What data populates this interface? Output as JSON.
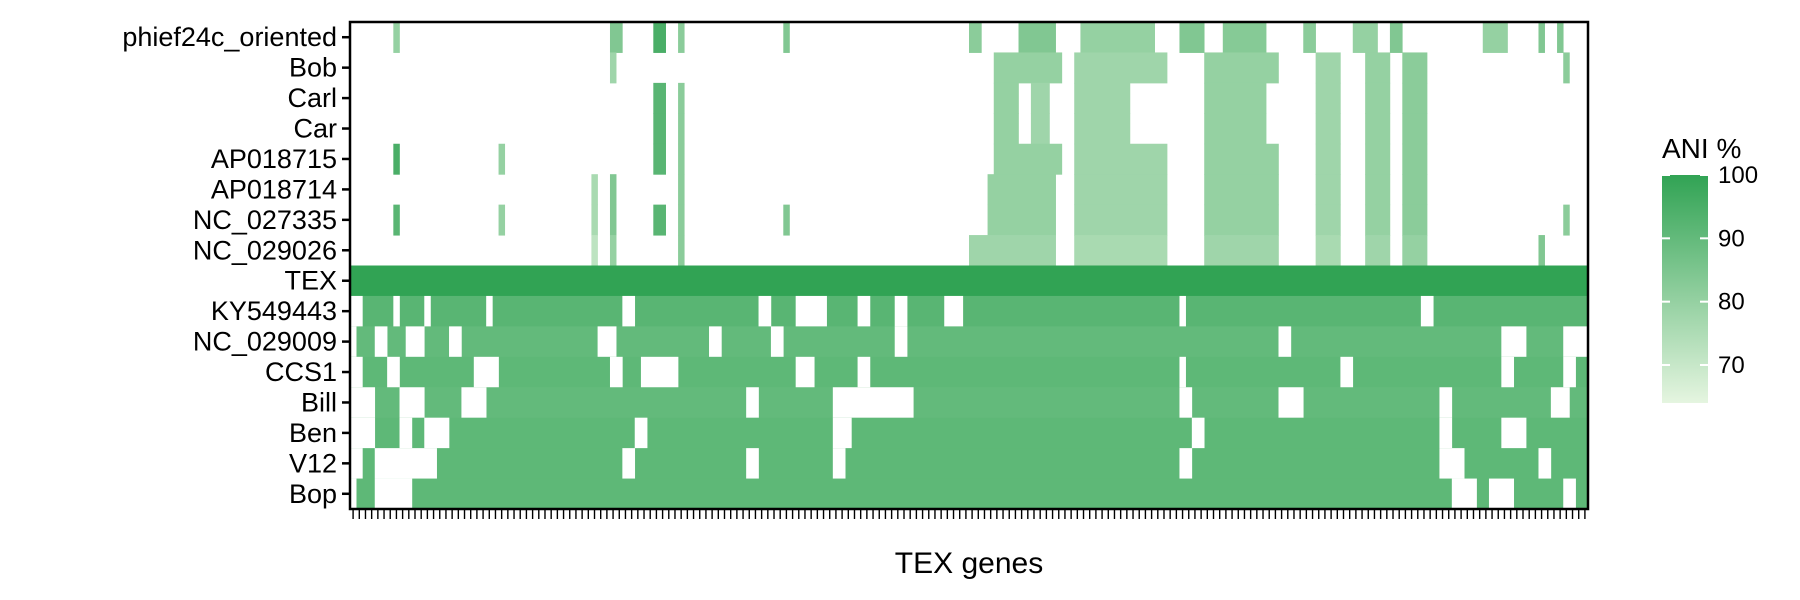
{
  "chart_data": {
    "type": "heatmap",
    "title": "",
    "xlabel": "TEX genes",
    "ylabel": "",
    "rows": [
      "phief24c_oriented",
      "Bob",
      "Carl",
      "Car",
      "AP018715",
      "AP018714",
      "NC_027335",
      "NC_029026",
      "TEX",
      "KY549443",
      "NC_029009",
      "CCS1",
      "Bill",
      "Ben",
      "V12",
      "Bop"
    ],
    "n_columns": 200,
    "x_tick_labels_shown": false,
    "legend": {
      "title": "ANI %",
      "ticks": [
        70,
        80,
        90,
        100
      ],
      "min": 64,
      "max": 100,
      "position": "right"
    },
    "colors": {
      "low": "#e5f5e0",
      "high": "#31a354",
      "missing": "#ffffff"
    },
    "row_patterns": [
      {
        "row": "phief24c_oriented",
        "default": null,
        "spans": [
          [
            7,
            8,
            80
          ],
          [
            42,
            44,
            84
          ],
          [
            49,
            51,
            95
          ],
          [
            53,
            54,
            82
          ],
          [
            70,
            71,
            84
          ],
          [
            100,
            102,
            82
          ],
          [
            108,
            114,
            84
          ],
          [
            118,
            130,
            80
          ],
          [
            134,
            138,
            84
          ],
          [
            141,
            148,
            83
          ],
          [
            154,
            156,
            82
          ],
          [
            162,
            166,
            80
          ],
          [
            168,
            170,
            84
          ],
          [
            183,
            187,
            80
          ],
          [
            192,
            193,
            84
          ],
          [
            195,
            196,
            84
          ]
        ]
      },
      {
        "row": "Bob",
        "default": null,
        "spans": [
          [
            42,
            43,
            78
          ],
          [
            104,
            115,
            80
          ],
          [
            117,
            132,
            78
          ],
          [
            138,
            150,
            80
          ],
          [
            156,
            160,
            78
          ],
          [
            164,
            168,
            80
          ],
          [
            170,
            174,
            82
          ],
          [
            196,
            197,
            82
          ]
        ]
      },
      {
        "row": "Carl",
        "default": null,
        "spans": [
          [
            49,
            51,
            92
          ],
          [
            53,
            54,
            82
          ],
          [
            104,
            108,
            80
          ],
          [
            110,
            113,
            78
          ],
          [
            117,
            126,
            78
          ],
          [
            138,
            148,
            80
          ],
          [
            156,
            160,
            78
          ],
          [
            164,
            168,
            80
          ],
          [
            170,
            174,
            82
          ]
        ]
      },
      {
        "row": "Car",
        "default": null,
        "spans": [
          [
            49,
            51,
            92
          ],
          [
            53,
            54,
            82
          ],
          [
            104,
            108,
            80
          ],
          [
            110,
            113,
            78
          ],
          [
            117,
            126,
            78
          ],
          [
            138,
            148,
            80
          ],
          [
            156,
            160,
            78
          ],
          [
            164,
            168,
            80
          ],
          [
            170,
            174,
            82
          ]
        ]
      },
      {
        "row": "AP018715",
        "default": null,
        "spans": [
          [
            7,
            8,
            95
          ],
          [
            24,
            25,
            80
          ],
          [
            49,
            51,
            92
          ],
          [
            53,
            54,
            82
          ],
          [
            104,
            115,
            80
          ],
          [
            117,
            132,
            78
          ],
          [
            138,
            150,
            80
          ],
          [
            156,
            160,
            78
          ],
          [
            164,
            168,
            80
          ],
          [
            170,
            174,
            82
          ]
        ]
      },
      {
        "row": "AP018714",
        "default": null,
        "spans": [
          [
            39,
            40,
            76
          ],
          [
            42,
            43,
            84
          ],
          [
            53,
            54,
            82
          ],
          [
            103,
            114,
            80
          ],
          [
            117,
            132,
            78
          ],
          [
            138,
            150,
            80
          ],
          [
            156,
            160,
            78
          ],
          [
            164,
            168,
            80
          ],
          [
            170,
            174,
            82
          ]
        ]
      },
      {
        "row": "NC_027335",
        "default": null,
        "spans": [
          [
            7,
            8,
            92
          ],
          [
            24,
            25,
            80
          ],
          [
            39,
            40,
            76
          ],
          [
            42,
            43,
            84
          ],
          [
            49,
            51,
            92
          ],
          [
            53,
            54,
            82
          ],
          [
            70,
            71,
            84
          ],
          [
            103,
            114,
            80
          ],
          [
            117,
            132,
            78
          ],
          [
            138,
            150,
            80
          ],
          [
            156,
            160,
            78
          ],
          [
            164,
            168,
            80
          ],
          [
            170,
            174,
            82
          ],
          [
            196,
            197,
            82
          ]
        ]
      },
      {
        "row": "NC_029026",
        "default": null,
        "spans": [
          [
            39,
            40,
            72
          ],
          [
            42,
            43,
            80
          ],
          [
            53,
            54,
            82
          ],
          [
            100,
            114,
            78
          ],
          [
            117,
            132,
            76
          ],
          [
            138,
            150,
            78
          ],
          [
            156,
            160,
            76
          ],
          [
            164,
            168,
            78
          ],
          [
            170,
            174,
            80
          ],
          [
            192,
            193,
            84
          ]
        ]
      },
      {
        "row": "TEX",
        "default": 100,
        "spans": []
      },
      {
        "row": "KY549443",
        "default": 92,
        "spans": [
          [
            0,
            2,
            null
          ],
          [
            7,
            8,
            null
          ],
          [
            12,
            13,
            null
          ],
          [
            22,
            23,
            null
          ],
          [
            44,
            46,
            null
          ],
          [
            66,
            68,
            null
          ],
          [
            72,
            77,
            null
          ],
          [
            82,
            84,
            null
          ],
          [
            88,
            90,
            null
          ],
          [
            96,
            99,
            null
          ],
          [
            134,
            135,
            null
          ],
          [
            173,
            175,
            null
          ]
        ]
      },
      {
        "row": "NC_029009",
        "default": 90,
        "spans": [
          [
            0,
            1,
            null
          ],
          [
            4,
            6,
            null
          ],
          [
            9,
            12,
            null
          ],
          [
            16,
            18,
            null
          ],
          [
            40,
            43,
            null
          ],
          [
            58,
            60,
            null
          ],
          [
            68,
            70,
            null
          ],
          [
            88,
            90,
            null
          ],
          [
            150,
            152,
            null
          ],
          [
            186,
            190,
            null
          ],
          [
            196,
            200,
            null
          ]
        ]
      },
      {
        "row": "CCS1",
        "default": 91,
        "spans": [
          [
            0,
            2,
            null
          ],
          [
            6,
            8,
            null
          ],
          [
            20,
            24,
            null
          ],
          [
            42,
            44,
            null
          ],
          [
            47,
            53,
            null
          ],
          [
            72,
            75,
            null
          ],
          [
            82,
            84,
            null
          ],
          [
            134,
            135,
            null
          ],
          [
            160,
            162,
            null
          ],
          [
            186,
            188,
            null
          ],
          [
            196,
            198,
            null
          ]
        ]
      },
      {
        "row": "Bill",
        "default": 90,
        "spans": [
          [
            0,
            4,
            null
          ],
          [
            8,
            12,
            null
          ],
          [
            18,
            22,
            null
          ],
          [
            64,
            66,
            null
          ],
          [
            78,
            91,
            null
          ],
          [
            134,
            136,
            null
          ],
          [
            150,
            154,
            null
          ],
          [
            176,
            178,
            null
          ],
          [
            194,
            197,
            null
          ]
        ]
      },
      {
        "row": "Ben",
        "default": 91,
        "spans": [
          [
            0,
            4,
            null
          ],
          [
            8,
            10,
            null
          ],
          [
            12,
            16,
            null
          ],
          [
            46,
            48,
            null
          ],
          [
            78,
            81,
            null
          ],
          [
            136,
            138,
            null
          ],
          [
            176,
            178,
            null
          ],
          [
            186,
            190,
            null
          ]
        ]
      },
      {
        "row": "V12",
        "default": 91,
        "spans": [
          [
            0,
            2,
            null
          ],
          [
            4,
            14,
            null
          ],
          [
            44,
            46,
            null
          ],
          [
            64,
            66,
            null
          ],
          [
            78,
            80,
            null
          ],
          [
            134,
            136,
            null
          ],
          [
            176,
            180,
            null
          ],
          [
            192,
            194,
            null
          ]
        ]
      },
      {
        "row": "Bop",
        "default": 91,
        "spans": [
          [
            0,
            1,
            null
          ],
          [
            4,
            10,
            null
          ],
          [
            178,
            182,
            null
          ],
          [
            184,
            188,
            null
          ],
          [
            196,
            198,
            null
          ]
        ]
      }
    ]
  }
}
